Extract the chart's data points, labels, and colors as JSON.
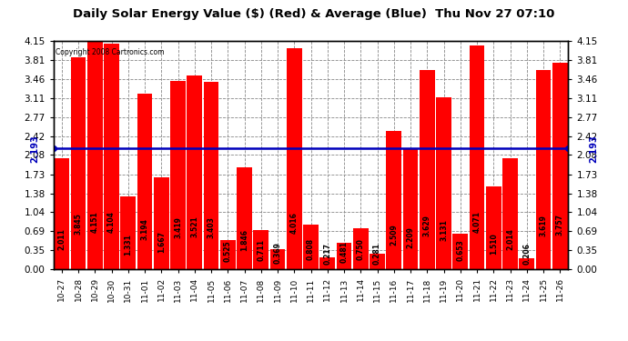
{
  "title": "Daily Solar Energy Value ($) (Red) & Average (Blue)  Thu Nov 27 07:10",
  "copyright": "Copyright 2008 Cartronics.com",
  "average": 2.193,
  "categories": [
    "10-27",
    "10-28",
    "10-29",
    "10-30",
    "10-31",
    "11-01",
    "11-02",
    "11-03",
    "11-04",
    "11-05",
    "11-06",
    "11-07",
    "11-08",
    "11-09",
    "11-10",
    "11-11",
    "11-12",
    "11-13",
    "11-14",
    "11-15",
    "11-16",
    "11-17",
    "11-18",
    "11-19",
    "11-20",
    "11-21",
    "11-22",
    "11-23",
    "11-24",
    "11-25",
    "11-26"
  ],
  "values": [
    2.011,
    3.845,
    4.151,
    4.104,
    1.331,
    3.194,
    1.667,
    3.419,
    3.521,
    3.403,
    0.525,
    1.846,
    0.711,
    0.369,
    4.016,
    0.808,
    0.217,
    0.481,
    0.75,
    0.281,
    2.509,
    2.209,
    3.629,
    3.131,
    0.653,
    4.071,
    1.51,
    2.014,
    0.206,
    3.619,
    3.757
  ],
  "bar_color": "#FF0000",
  "line_color": "#0000BB",
  "bg_color": "#FFFFFF",
  "plot_bg_color": "#FFFFFF",
  "grid_color": "#888888",
  "ylim": [
    0.0,
    4.15
  ],
  "yticks": [
    0.0,
    0.35,
    0.69,
    1.04,
    1.38,
    1.73,
    2.08,
    2.42,
    2.77,
    3.11,
    3.46,
    3.81,
    4.15
  ],
  "title_fontsize": 9.5,
  "label_fontsize": 6.0,
  "tick_fontsize": 7.5,
  "bar_label_fontsize": 5.5
}
